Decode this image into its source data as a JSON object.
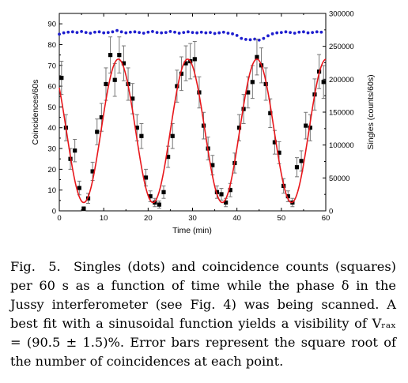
{
  "chart_data": {
    "type": "scatter",
    "x_axis": {
      "label": "Time (min)",
      "range": [
        0,
        60
      ],
      "ticks": [
        0,
        10,
        20,
        30,
        40,
        50,
        60
      ]
    },
    "y_left": {
      "label": "Coincidences/60s",
      "range": [
        0,
        95
      ],
      "ticks": [
        0,
        10,
        20,
        30,
        40,
        50,
        60,
        70,
        80,
        90
      ]
    },
    "y_right": {
      "label": "Singles (counts/60s)",
      "range": [
        0,
        300000
      ],
      "ticks": [
        "0",
        "50000",
        "100000",
        "150000",
        "200000",
        "250000",
        "300000"
      ]
    },
    "grid": false,
    "series": [
      {
        "kind": "coincidences",
        "marker": "square",
        "color": "#000000",
        "axis": "left",
        "points": [
          [
            0.5,
            64,
            8
          ],
          [
            1.5,
            40,
            6.3
          ],
          [
            2.5,
            25,
            5
          ],
          [
            3.5,
            29,
            5.4
          ],
          [
            4.5,
            11,
            3.3
          ],
          [
            5.5,
            1,
            1
          ],
          [
            6.5,
            6,
            2.4
          ],
          [
            7.5,
            19,
            4.4
          ],
          [
            8.5,
            38,
            6.2
          ],
          [
            9.5,
            45,
            6.7
          ],
          [
            10.5,
            61,
            7.8
          ],
          [
            11.5,
            75,
            8.7
          ],
          [
            12.5,
            63,
            7.9
          ],
          [
            13.5,
            75,
            8.7
          ],
          [
            14.5,
            71,
            8.4
          ],
          [
            15.5,
            61,
            7.8
          ],
          [
            16.5,
            54,
            7.3
          ],
          [
            17.5,
            40,
            6.3
          ],
          [
            18.5,
            36,
            6
          ],
          [
            19.5,
            16,
            4
          ],
          [
            20.5,
            7,
            2.6
          ],
          [
            21.5,
            4,
            2
          ],
          [
            22.5,
            3,
            1.7
          ],
          [
            23.5,
            9,
            3
          ],
          [
            24.5,
            26,
            5.1
          ],
          [
            25.5,
            36,
            6
          ],
          [
            26.5,
            60,
            7.7
          ],
          [
            27.5,
            66,
            8.1
          ],
          [
            28.5,
            71,
            8.4
          ],
          [
            29.5,
            72,
            8.5
          ],
          [
            30.5,
            73,
            8.5
          ],
          [
            31.5,
            57,
            7.5
          ],
          [
            32.5,
            41,
            6.4
          ],
          [
            33.5,
            30,
            5.5
          ],
          [
            34.5,
            22,
            4.7
          ],
          [
            35.5,
            9,
            3
          ],
          [
            36.5,
            8,
            2.8
          ],
          [
            37.5,
            4,
            2
          ],
          [
            38.5,
            10,
            3.2
          ],
          [
            39.5,
            23,
            4.8
          ],
          [
            40.5,
            40,
            6.3
          ],
          [
            41.5,
            49,
            7
          ],
          [
            42.5,
            57,
            7.5
          ],
          [
            43.5,
            62,
            7.9
          ],
          [
            44.5,
            74,
            8.6
          ],
          [
            45.5,
            70,
            8.4
          ],
          [
            46.5,
            61,
            7.8
          ],
          [
            47.5,
            47,
            6.9
          ],
          [
            48.5,
            33,
            5.7
          ],
          [
            49.5,
            28,
            5.3
          ],
          [
            50.5,
            12,
            3.5
          ],
          [
            51.5,
            7,
            2.6
          ],
          [
            52.5,
            4,
            2
          ],
          [
            53.5,
            21,
            4.6
          ],
          [
            54.5,
            24,
            4.9
          ],
          [
            55.5,
            41,
            6.4
          ],
          [
            56.5,
            40,
            6.3
          ],
          [
            57.5,
            56,
            7.5
          ],
          [
            58.5,
            67,
            8.2
          ],
          [
            59.5,
            62,
            7.9
          ]
        ]
      },
      {
        "kind": "singles",
        "marker": "dot",
        "color": "#1f1fcf",
        "axis": "right",
        "points": [
          [
            0,
            268500
          ],
          [
            1,
            270500
          ],
          [
            2,
            271500
          ],
          [
            3,
            272000
          ],
          [
            4,
            271000
          ],
          [
            5,
            272500
          ],
          [
            6,
            271000
          ],
          [
            7,
            270000
          ],
          [
            8,
            271500
          ],
          [
            9,
            272000
          ],
          [
            10,
            270500
          ],
          [
            11,
            271000
          ],
          [
            12,
            272000
          ],
          [
            13,
            274000
          ],
          [
            14,
            272000
          ],
          [
            15,
            270500
          ],
          [
            16,
            271500
          ],
          [
            17,
            272000
          ],
          [
            18,
            271000
          ],
          [
            19,
            270000
          ],
          [
            20,
            271500
          ],
          [
            21,
            272500
          ],
          [
            22,
            271000
          ],
          [
            23,
            270500
          ],
          [
            24,
            271000
          ],
          [
            25,
            272500
          ],
          [
            26,
            271500
          ],
          [
            27,
            270000
          ],
          [
            28,
            271000
          ],
          [
            29,
            272000
          ],
          [
            30,
            271000
          ],
          [
            31,
            270500
          ],
          [
            32,
            271500
          ],
          [
            33,
            270500
          ],
          [
            34,
            271000
          ],
          [
            35,
            269500
          ],
          [
            36,
            270500
          ],
          [
            37,
            271500
          ],
          [
            38,
            270000
          ],
          [
            39,
            269000
          ],
          [
            40,
            266500
          ],
          [
            41,
            262000
          ],
          [
            42,
            260500
          ],
          [
            43,
            260000
          ],
          [
            44,
            261000
          ],
          [
            45,
            259500
          ],
          [
            46,
            262000
          ],
          [
            47,
            266000
          ],
          [
            48,
            269000
          ],
          [
            49,
            270500
          ],
          [
            50,
            271000
          ],
          [
            51,
            272000
          ],
          [
            52,
            271000
          ],
          [
            53,
            270000
          ],
          [
            54,
            271500
          ],
          [
            55,
            272000
          ],
          [
            56,
            270500
          ],
          [
            57,
            271000
          ],
          [
            58,
            272000
          ],
          [
            59,
            271500
          ]
        ]
      },
      {
        "kind": "sinusoidal_fit",
        "marker": "line",
        "color": "#e8161b",
        "axis": "left",
        "function": {
          "offset": 38.5,
          "amplitude": 34.5,
          "period_min": 15.6,
          "min_at_min": 5.5
        }
      }
    ]
  },
  "caption": "Fig.  5.  Singles (dots) and coincidence counts (squares) per 60 s as a function of time while the phase δ in the Jussy interferometer (see Fig. 4) was being scanned. A best fit with a sinusoidal function yields a visibility of Vᵣₐₓ = (90.5 ± 1.5)%. Error bars represent the square root of the number of coincidences at each point."
}
